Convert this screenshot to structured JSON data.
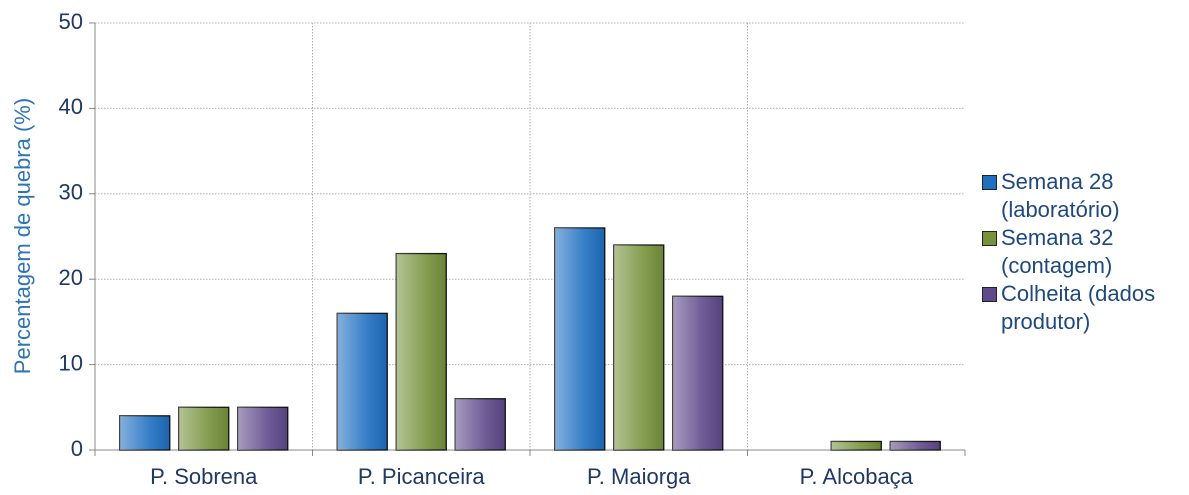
{
  "chart_data": {
    "type": "bar",
    "y_label": "Percentagem de quebra (%)",
    "categories": [
      "P. Sobrena",
      "P. Picanceira",
      "P. Maiorga",
      "P. Alcobaça"
    ],
    "series": [
      {
        "name": "Semana 28 (laboratório)",
        "color": "#1f70c1",
        "values": [
          4,
          16,
          26,
          0
        ]
      },
      {
        "name": "Semana 32 (contagem)",
        "color": "#76923c",
        "values": [
          5,
          23,
          24,
          1
        ]
      },
      {
        "name": "Colheita (dados produtor)",
        "color": "#5f4a8b",
        "values": [
          5,
          6,
          18,
          1
        ]
      }
    ],
    "ylim": [
      0,
      50
    ],
    "yticks": [
      0,
      10,
      20,
      30,
      40,
      50
    ],
    "grid": true
  }
}
